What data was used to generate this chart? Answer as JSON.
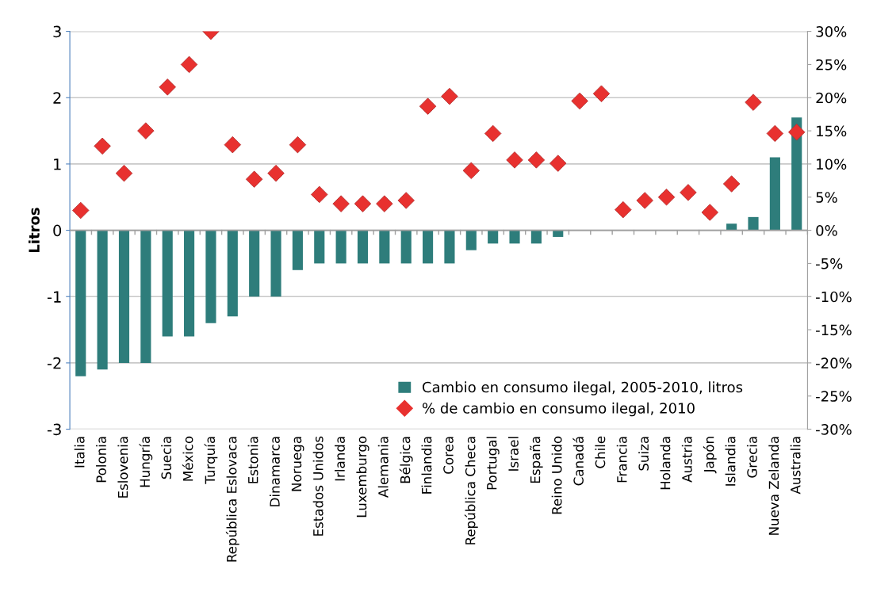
{
  "chart_data": {
    "type": "bar",
    "ylabel": "Litros",
    "categories": [
      "Italia",
      "Polonia",
      "Eslovenia",
      "Hungría",
      "Suecia",
      "México",
      "Turquía",
      "República Eslovaca",
      "Estonia",
      "Dinamarca",
      "Noruega",
      "Estados Unidos",
      "Irlanda",
      "Luxemburgo",
      "Alemania",
      "Bélgica",
      "Finlandia",
      "Corea",
      "República Checa",
      "Portugal",
      "Israel",
      "España",
      "Reino Unido",
      "Canadá",
      "Chile",
      "Francia",
      "Suiza",
      "Holanda",
      "Austria",
      "Japón",
      "Islandia",
      "Grecia",
      "Nueva Zelanda",
      "Australia"
    ],
    "series": [
      {
        "name": "Cambio en consumo ilegal, 2005-2010, litros",
        "color": "#2e7d7b",
        "values": [
          -2.2,
          -2.1,
          -2.0,
          -2.0,
          -1.6,
          -1.6,
          -1.4,
          -1.3,
          -1.0,
          -1.0,
          -0.6,
          -0.5,
          -0.5,
          -0.5,
          -0.5,
          -0.5,
          -0.5,
          -0.5,
          -0.3,
          -0.2,
          -0.2,
          -0.2,
          -0.1,
          0,
          0,
          0,
          0,
          0,
          0,
          0,
          0.1,
          0.2,
          1.1,
          1.7
        ]
      },
      {
        "name": "% de cambio en consumo ilegal, 2010",
        "type": "scatter",
        "axis": "y2",
        "marker": "diamond",
        "color": "#e8312f",
        "values": [
          3.0,
          12.7,
          8.6,
          15.0,
          21.6,
          25.0,
          30.0,
          12.9,
          7.7,
          8.6,
          12.9,
          5.4,
          4.0,
          4.0,
          4.0,
          4.5,
          18.7,
          20.2,
          9.0,
          14.6,
          10.6,
          10.6,
          10.1,
          19.5,
          20.6,
          3.1,
          4.5,
          5.0,
          5.7,
          2.7,
          7.0,
          19.3,
          14.6,
          14.8
        ]
      }
    ],
    "ylim": [
      -3,
      3
    ],
    "yticks": [
      -3,
      -2,
      -1,
      0,
      1,
      2,
      3
    ],
    "y2lim": [
      -30,
      30
    ],
    "y2ticks": [
      {
        "value": -30,
        "label": "-30%"
      },
      {
        "value": -25,
        "label": "-25%"
      },
      {
        "value": -20,
        "label": "-20%"
      },
      {
        "value": -15,
        "label": "-15%"
      },
      {
        "value": -10,
        "label": "-10%"
      },
      {
        "value": -5,
        "label": "-5%"
      },
      {
        "value": 0,
        "label": "0%"
      },
      {
        "value": 5,
        "label": "5%"
      },
      {
        "value": 10,
        "label": "10%"
      },
      {
        "value": 15,
        "label": "15%"
      },
      {
        "value": 20,
        "label": "20%"
      },
      {
        "value": 25,
        "label": "25%"
      },
      {
        "value": 30,
        "label": "30%"
      }
    ],
    "grid": "y",
    "legend": "bottom right"
  }
}
